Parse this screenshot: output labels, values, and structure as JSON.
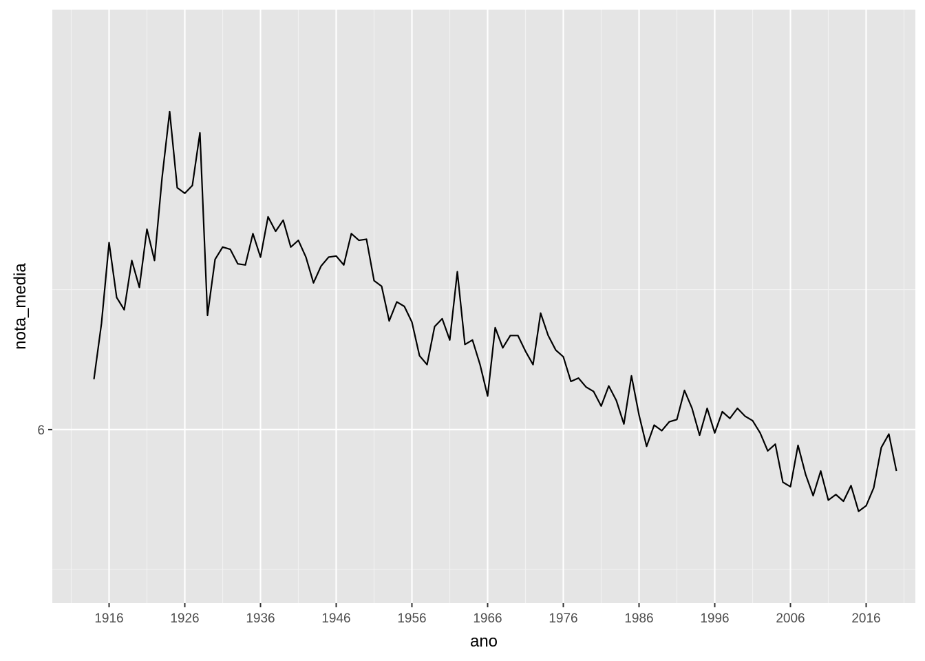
{
  "chart_data": {
    "type": "line",
    "xlabel": "ano",
    "ylabel": "nota_media",
    "xlim": [
      1908.5,
      2022.5
    ],
    "ylim": [
      5.845,
      6.375
    ],
    "x_ticks": [
      1916,
      1926,
      1936,
      1946,
      1956,
      1966,
      1976,
      1986,
      1996,
      2006,
      2016
    ],
    "y_ticks": [
      6
    ],
    "grid": true,
    "legend": "none",
    "colors": {
      "panel": "#e5e5e5",
      "grid_major": "#ffffff",
      "grid_minor": "#f2f2f2",
      "line": "#000000"
    },
    "series": [
      {
        "x": [
          1914,
          1915,
          1916,
          1917,
          1918,
          1919,
          1920,
          1921,
          1922,
          1923,
          1924,
          1925,
          1926,
          1927,
          1928,
          1929,
          1930,
          1931,
          1932,
          1933,
          1934,
          1935,
          1936,
          1937,
          1938,
          1939,
          1940,
          1941,
          1942,
          1943,
          1944,
          1945,
          1946,
          1947,
          1948,
          1949,
          1950,
          1951,
          1952,
          1953,
          1954,
          1955,
          1956,
          1957,
          1958,
          1959,
          1960,
          1961,
          1962,
          1963,
          1964,
          1965,
          1966,
          1967,
          1968,
          1969,
          1970,
          1971,
          1972,
          1973,
          1974,
          1975,
          1976,
          1977,
          1978,
          1979,
          1980,
          1981,
          1982,
          1983,
          1984,
          1985,
          1986,
          1987,
          1988,
          1989,
          1990,
          1991,
          1992,
          1993,
          1994,
          1995,
          1996,
          1997,
          1998,
          1999,
          2000,
          2001,
          2002,
          2003,
          2004,
          2005,
          2006,
          2007,
          2008,
          2009,
          2010,
          2011,
          2012,
          2013,
          2014,
          2015,
          2016,
          2017,
          2018,
          2019,
          2020
        ],
        "values": [
          6.045,
          6.095,
          6.167,
          6.118,
          6.107,
          6.151,
          6.127,
          6.179,
          6.151,
          6.225,
          6.284,
          6.216,
          6.211,
          6.218,
          6.265,
          6.102,
          6.152,
          6.163,
          6.161,
          6.148,
          6.147,
          6.175,
          6.154,
          6.19,
          6.177,
          6.187,
          6.163,
          6.169,
          6.154,
          6.131,
          6.146,
          6.154,
          6.155,
          6.147,
          6.175,
          6.169,
          6.17,
          6.133,
          6.128,
          6.097,
          6.114,
          6.11,
          6.096,
          6.066,
          6.058,
          6.092,
          6.099,
          6.08,
          6.141,
          6.076,
          6.08,
          6.058,
          6.03,
          6.091,
          6.073,
          6.084,
          6.084,
          6.07,
          6.058,
          6.104,
          6.084,
          6.071,
          6.065,
          6.043,
          6.046,
          6.038,
          6.034,
          6.021,
          6.039,
          6.026,
          6.005,
          6.048,
          6.013,
          5.985,
          6.004,
          5.999,
          6.007,
          6.009,
          6.035,
          6.019,
          5.995,
          6.019,
          5.997,
          6.016,
          6.01,
          6.019,
          6.012,
          6.008,
          5.997,
          5.981,
          5.987,
          5.953,
          5.949,
          5.986,
          5.96,
          5.941,
          5.963,
          5.937,
          5.942,
          5.936,
          5.95,
          5.927,
          5.932,
          5.948,
          5.984,
          5.996,
          5.963
        ]
      }
    ]
  }
}
